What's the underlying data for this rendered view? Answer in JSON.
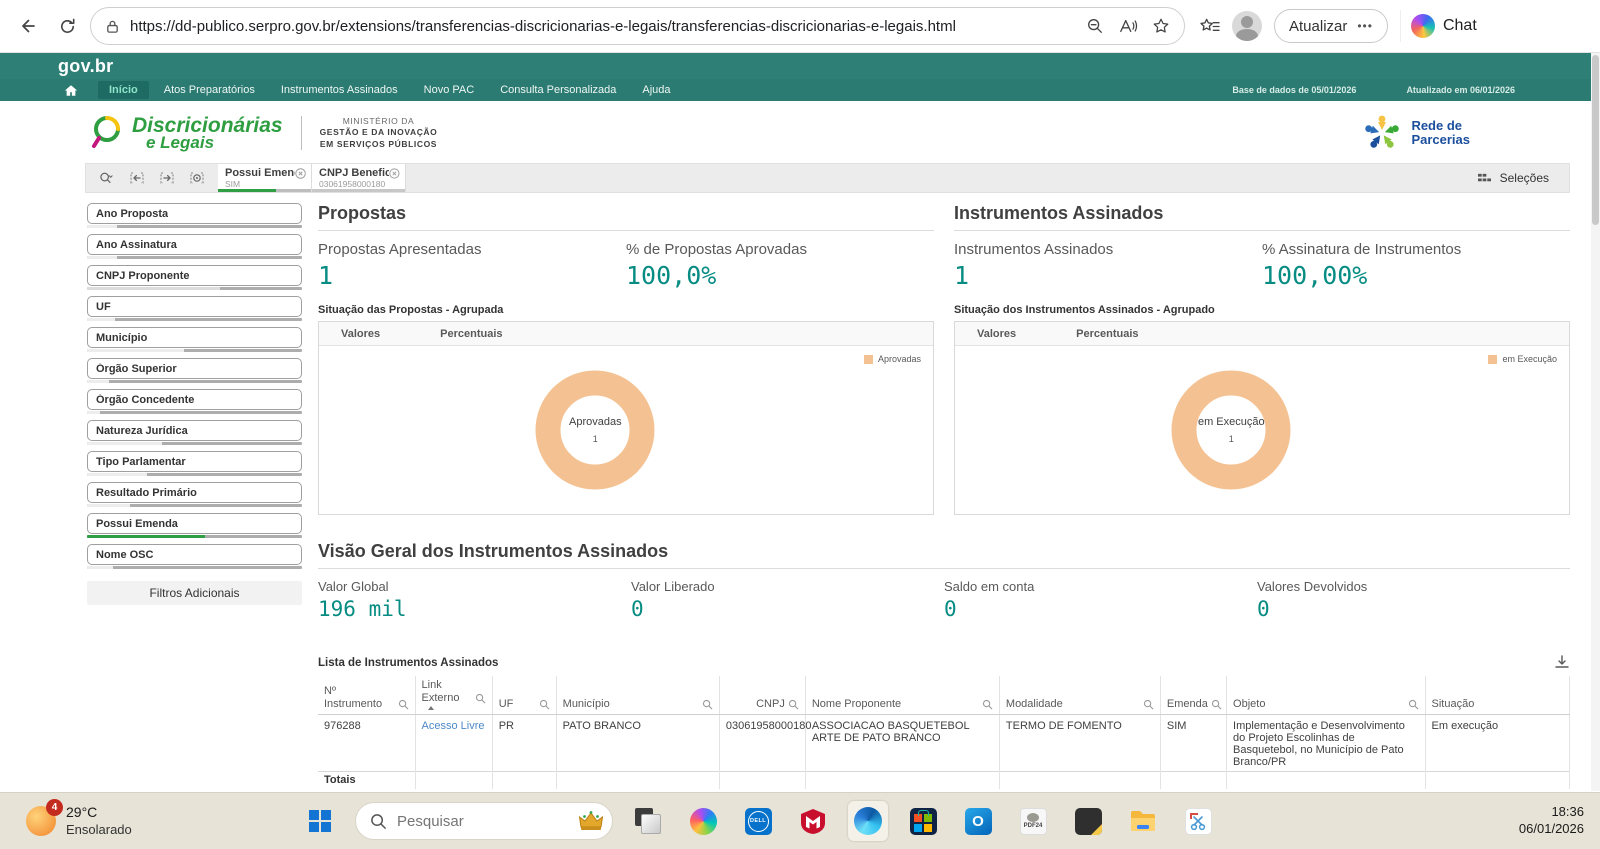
{
  "colors": {
    "header_teal": "#2e8077",
    "accent_teal": "#068c82",
    "donut_orange": "#f4c292",
    "selected_green": "#2f9e44",
    "link_blue": "#4d88c8"
  },
  "browser": {
    "url": "https://dd-publico.serpro.gov.br/extensions/transferencias-discricionarias-e-legais/transferencias-discricionarias-e-legais.html",
    "update_button": "Atualizar",
    "more_dots": "•••",
    "chat_label": "Chat"
  },
  "gov": {
    "logo": "gov.br",
    "menu": [
      {
        "label": "Início"
      },
      {
        "label": "Atos Preparatórios"
      },
      {
        "label": "Instrumentos Assinados"
      },
      {
        "label": "Novo PAC"
      },
      {
        "label": "Consulta Personalizada"
      },
      {
        "label": "Ajuda"
      }
    ],
    "base_date": "Base de dados de 05/01/2026",
    "updated_date": "Atualizado em 06/01/2026"
  },
  "brand": {
    "app_line1": "Discricionárias",
    "app_line2": "e Legais",
    "ministry_line1": "MINISTÉRIO DA",
    "ministry_line2": "GESTÃO E DA INOVAÇÃO",
    "ministry_line3": "EM SERVIÇOS PÚBLICOS",
    "partner_line1": "Rede de",
    "partner_line2": "Parcerias"
  },
  "selection_bar": {
    "chips": [
      {
        "label": "Possui Emenda",
        "value": "SIM"
      },
      {
        "label": "CNPJ Benefici...",
        "value": "03061958000180"
      }
    ],
    "selections_label": "Seleções"
  },
  "sidebar": {
    "items": [
      {
        "label": "Ano Proposta",
        "fill_pct": 14,
        "fill_color": "#ededed"
      },
      {
        "label": "Ano Assinatura",
        "fill_pct": 14,
        "fill_color": "#ededed"
      },
      {
        "label": "CNPJ Proponente",
        "fill_pct": 62,
        "fill_color": "#dcdcdc"
      },
      {
        "label": "UF",
        "fill_pct": 13,
        "fill_color": "#ededed"
      },
      {
        "label": "Município",
        "fill_pct": 45,
        "fill_color": "#ededed"
      },
      {
        "label": "Órgão Superior",
        "fill_pct": 10,
        "fill_color": "#ededed"
      },
      {
        "label": "Órgão Concedente",
        "fill_pct": 6,
        "fill_color": "#ededed"
      },
      {
        "label": "Natureza Jurídica",
        "fill_pct": 35,
        "fill_color": "#ededed"
      },
      {
        "label": "Tipo Parlamentar",
        "fill_pct": 28,
        "fill_color": "#ededed"
      },
      {
        "label": "Resultado Primário",
        "fill_pct": 20,
        "fill_color": "#ededed"
      },
      {
        "label": "Possui Emenda",
        "fill_pct": 55,
        "fill_color": "#2f9e44"
      },
      {
        "label": "Nome OSC",
        "fill_pct": 12,
        "fill_color": "#ededed"
      }
    ],
    "more_filters": "Filtros Adicionais"
  },
  "propostas": {
    "title": "Propostas",
    "kpi1_label": "Propostas Apresentadas",
    "kpi1_value": "1",
    "kpi2_label": "% de Propostas Aprovadas",
    "kpi2_value": "100,0%",
    "chart_title": "Situação das Propostas - Agrupada",
    "tab_values": "Valores",
    "tab_percent": "Percentuais",
    "donut_label": "Aprovadas",
    "donut_value": "1",
    "legend": "Aprovadas",
    "donut_color": "#f4c292"
  },
  "instrumentos": {
    "title": "Instrumentos Assinados",
    "kpi1_label": "Instrumentos Assinados",
    "kpi1_value": "1",
    "kpi2_label": "% Assinatura de Instrumentos",
    "kpi2_value": "100,00%",
    "chart_title": "Situação dos Instrumentos Assinados - Agrupado",
    "tab_values": "Valores",
    "tab_percent": "Percentuais",
    "donut_label": "em Execução",
    "donut_value": "1",
    "legend": "em Execução",
    "donut_color": "#f4c292"
  },
  "chart_data": [
    {
      "type": "pie",
      "title": "Situação das Propostas - Agrupada",
      "categories": [
        "Aprovadas"
      ],
      "values": [
        1
      ],
      "colors": [
        "#f4c292"
      ],
      "center_label": "Aprovadas",
      "center_value": 1,
      "legend_position": "right"
    },
    {
      "type": "pie",
      "title": "Situação dos Instrumentos Assinados - Agrupado",
      "categories": [
        "em Execução"
      ],
      "values": [
        1
      ],
      "colors": [
        "#f4c292"
      ],
      "center_label": "em Execução",
      "center_value": 1,
      "legend_position": "right"
    }
  ],
  "visao": {
    "title": "Visão Geral dos Instrumentos Assinados",
    "kpis": [
      {
        "label": "Valor Global",
        "value": "196 mil"
      },
      {
        "label": "Valor Liberado",
        "value": "0"
      },
      {
        "label": "Saldo em conta",
        "value": "0"
      },
      {
        "label": "Valores Devolvidos",
        "value": "0"
      }
    ]
  },
  "lista": {
    "title": "Lista de Instrumentos Assinados",
    "columns": [
      "Nº Instrumento",
      "Link Externo",
      "UF",
      "Município",
      "CNPJ",
      "Nome Proponente",
      "Modalidade",
      "Emenda",
      "Objeto",
      "Situação"
    ],
    "row": {
      "num": "976288",
      "link": "Acesso Livre",
      "uf": "PR",
      "municipio": "PATO BRANCO",
      "cnpj": "03061958000180",
      "proponente": "ASSOCIACAO BASQUETEBOL ARTE DE PATO BRANCO",
      "modalidade": "TERMO DE FOMENTO",
      "emenda": "SIM",
      "objeto": "Implementação e Desenvolvimento do Projeto Escolinhas de Basquetebol, no Município de Pato Branco/PR",
      "situacao": "Em execução"
    },
    "totals_label": "Totais"
  },
  "taskbar": {
    "weather_badge": "4",
    "weather_temp": "29°C",
    "weather_desc": "Ensolarado",
    "search_placeholder": "Pesquisar",
    "dell_text": "DELL",
    "outlook_text": "O",
    "pdf24_text": "PDF24",
    "time": "18:36",
    "date": "06/01/2026"
  }
}
